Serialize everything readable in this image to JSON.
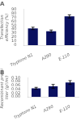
{
  "chart_data": [
    {
      "type": "bar",
      "title": "A",
      "categories": [
        "Tryptone N1",
        "A290",
        "E-110"
      ],
      "values": [
        42,
        35,
        72
      ],
      "errors": [
        3,
        3,
        4
      ],
      "color": "#0a1060",
      "ylabel": "Transfection efficiency (%)",
      "ylim": [
        0,
        90
      ],
      "yticks": [
        0,
        10,
        20,
        30,
        40,
        50,
        60,
        70,
        80,
        90
      ],
      "grid": false
    },
    {
      "type": "bar",
      "title": "B",
      "categories": [
        "Tryptone N1",
        "A290",
        "E-110"
      ],
      "values": [
        0.045,
        0.055,
        0.075
      ],
      "errors": [
        0.005,
        0.01,
        0.01
      ],
      "color": "#0a1060",
      "ylabel": "Recombinant protein titer (g/l/ml)",
      "ylim": [
        0,
        0.1
      ],
      "yticks": [
        {
          "value": 0,
          "label": "0.00"
        },
        {
          "value": 0.02,
          "label": "0.02"
        },
        {
          "value": 0.04,
          "label": "0.04"
        },
        {
          "value": 0.06,
          "label": "0.06"
        },
        {
          "value": 0.08,
          "label": "0.08"
        },
        {
          "value": 0.1,
          "label": "0.10"
        }
      ],
      "grid": false
    }
  ]
}
